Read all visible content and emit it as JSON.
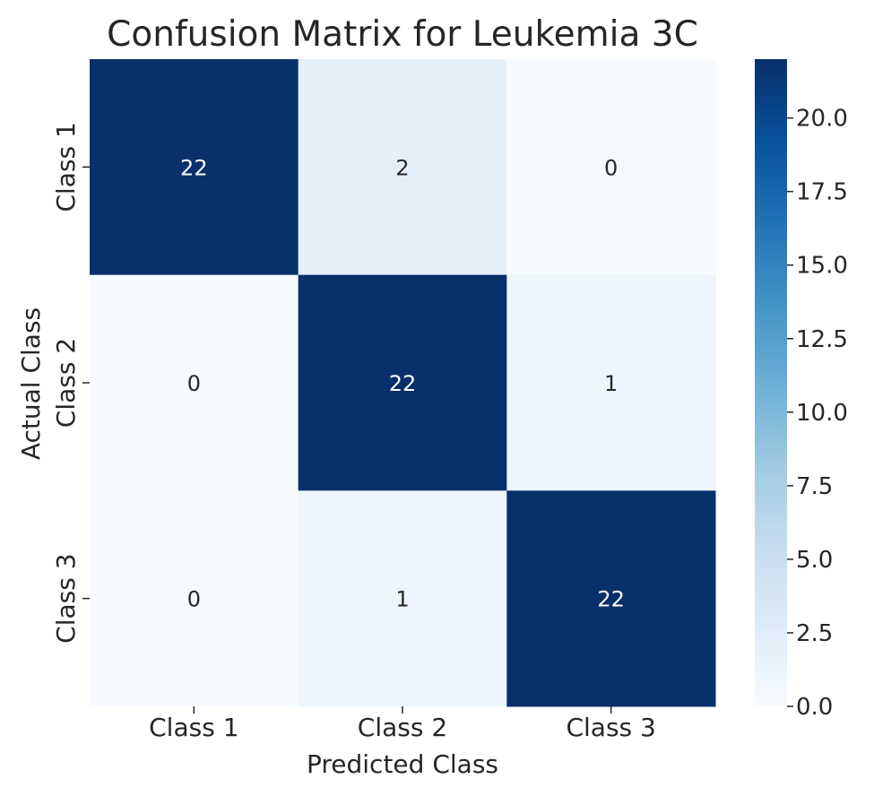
{
  "chart_data": {
    "type": "heatmap",
    "title": "Confusion Matrix for Leukemia 3C",
    "xlabel": "Predicted Class",
    "ylabel": "Actual Class",
    "x_categories": [
      "Class 1",
      "Class 2",
      "Class 3"
    ],
    "y_categories": [
      "Class 1",
      "Class 2",
      "Class 3"
    ],
    "values": [
      [
        22,
        2,
        0
      ],
      [
        0,
        22,
        1
      ],
      [
        0,
        1,
        22
      ]
    ],
    "colorbar": {
      "range": [
        0,
        22
      ],
      "ticks": [
        0.0,
        2.5,
        5.0,
        7.5,
        10.0,
        12.5,
        15.0,
        17.5,
        20.0
      ],
      "tick_labels": [
        "0.0",
        "2.5",
        "5.0",
        "7.5",
        "10.0",
        "12.5",
        "15.0",
        "17.5",
        "20.0"
      ],
      "colormap": "Blues"
    }
  }
}
